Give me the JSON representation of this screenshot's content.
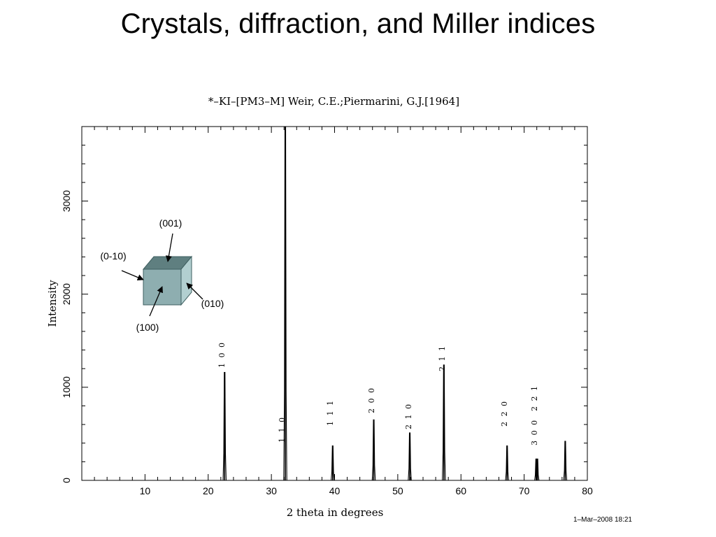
{
  "slide": {
    "title": "Crystals, diffraction, and Miller indices"
  },
  "chart_data": {
    "type": "line",
    "title": "*–KI–[PM3–M] Weir, C.E.;Piermarini, G.J.[1964]",
    "xlabel": "2 theta in degrees",
    "ylabel": "Intensity",
    "timestamp": "1–Mar–2008 18:21",
    "xlim": [
      0,
      80
    ],
    "ylim": [
      0,
      3800
    ],
    "x_ticks": [
      10,
      20,
      30,
      40,
      50,
      60,
      70,
      80
    ],
    "y_ticks": [
      0,
      1000,
      2000,
      3000
    ],
    "peaks": [
      {
        "x": 22.6,
        "y": 1160,
        "label": "1 0 0"
      },
      {
        "x": 32.2,
        "y": 3800,
        "label": "1 1 0"
      },
      {
        "x": 39.7,
        "y": 370,
        "label": "1 1 1"
      },
      {
        "x": 46.2,
        "y": 650,
        "label": "2 0 0"
      },
      {
        "x": 51.9,
        "y": 510,
        "label": "2 1 0"
      },
      {
        "x": 57.3,
        "y": 1240,
        "label": "2 1 1"
      },
      {
        "x": 67.3,
        "y": 370,
        "label": "2 2 0"
      },
      {
        "x": 71.9,
        "y": 230,
        "label": "3 0 0"
      },
      {
        "x": 72.1,
        "y": 230,
        "label": "2 2 1"
      },
      {
        "x": 76.5,
        "y": 420,
        "label": ""
      }
    ]
  },
  "cube": {
    "labels": {
      "top": "(001)",
      "left": "(0-10)",
      "right": "(010)",
      "front": "(100)"
    },
    "colors": {
      "front": "#8eaeb0",
      "top": "#5f7f80",
      "side": "#b2cfd0"
    }
  }
}
